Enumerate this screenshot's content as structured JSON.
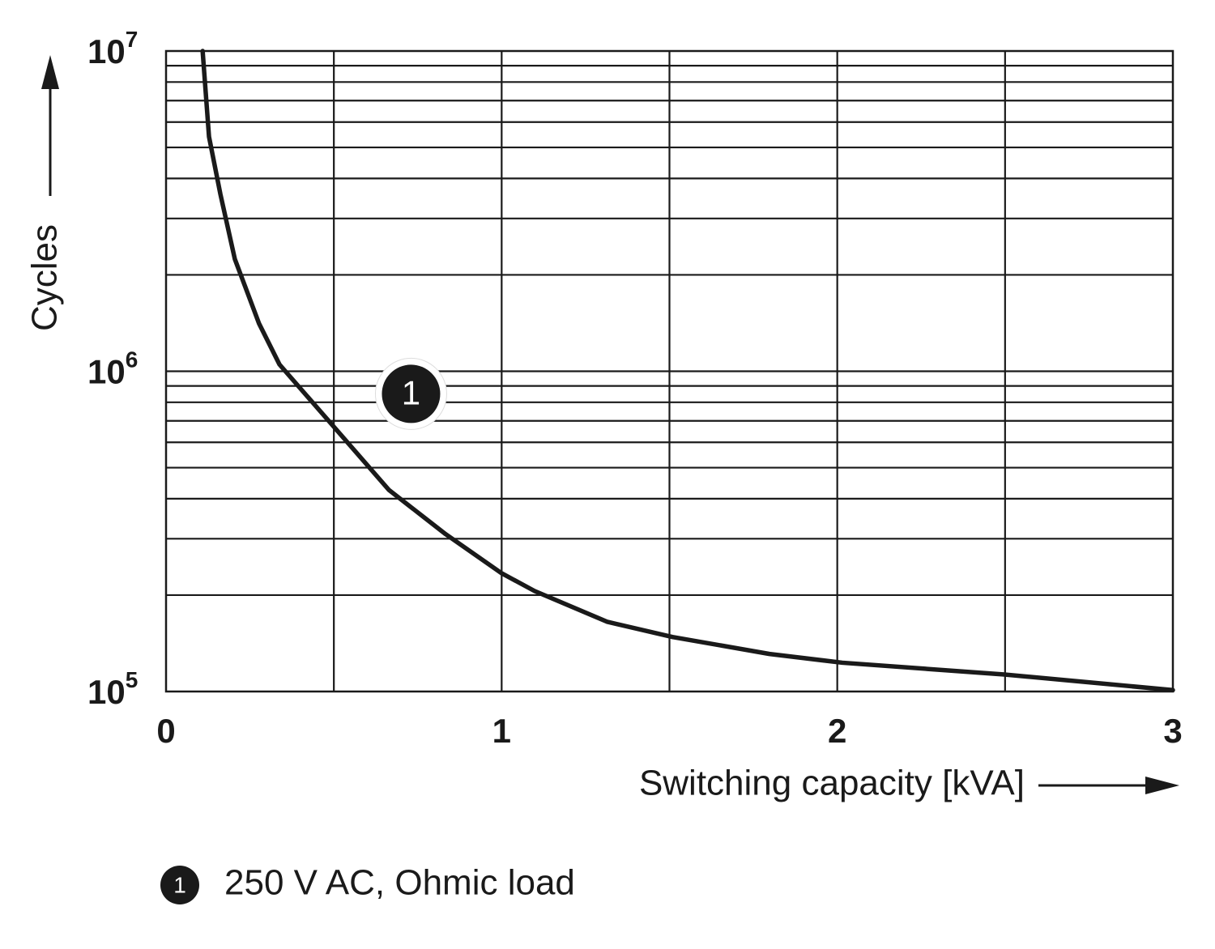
{
  "chart_data": {
    "type": "line",
    "log_y": true,
    "x_label": "Switching capacity [kVA]",
    "y_label": "Cycles",
    "xlim": [
      0,
      3
    ],
    "xticks": [
      0,
      1,
      2,
      3
    ],
    "xgrid": [
      0.5,
      1,
      1.5,
      2,
      2.5
    ],
    "ylim": [
      100000,
      10000000
    ],
    "yticks": [
      {
        "value": 100000,
        "label": "10",
        "exponent": "5"
      },
      {
        "value": 1000000,
        "label": "10",
        "exponent": "6"
      },
      {
        "value": 10000000,
        "label": "10",
        "exponent": "7"
      }
    ],
    "ygrid": [
      200000,
      300000,
      400000,
      500000,
      600000,
      700000,
      800000,
      900000,
      1000000,
      2000000,
      3000000,
      4000000,
      5000000,
      6000000,
      7000000,
      8000000,
      9000000
    ],
    "grid": true,
    "series": [
      {
        "name": "250 V AC, Ohmic load",
        "marker": "1",
        "color": "#1a1a1a",
        "x": [
          0.109,
          0.128,
          0.162,
          0.205,
          0.277,
          0.338,
          0.495,
          0.664,
          0.833,
          1.0,
          1.098,
          1.315,
          1.509,
          1.798,
          2.015,
          2.498,
          3.0
        ],
        "values": [
          10000000,
          5400000,
          3570000,
          2240000,
          1410000,
          1050000,
          680000,
          426000,
          310000,
          234000,
          206000,
          165000,
          148000,
          131000,
          123000,
          113000,
          101000
        ]
      }
    ]
  }
}
